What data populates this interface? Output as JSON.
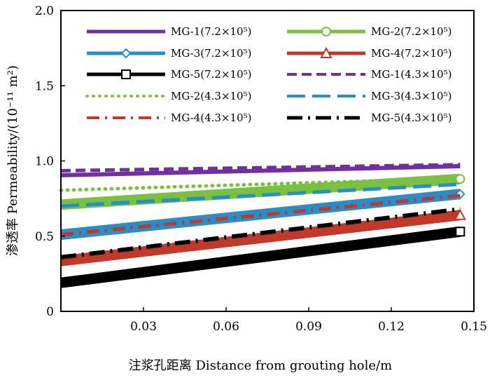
{
  "chart_data": {
    "type": "line",
    "title": "",
    "xlabel": "注浆孔距离 Distance from grouting hole/m",
    "ylabel": "渗透率 Permeability/(10⁻¹¹ m²)",
    "xlim": [
      0,
      0.15
    ],
    "ylim": [
      0,
      2.0
    ],
    "x_ticks": [
      0.03,
      0.06,
      0.09,
      0.12,
      0.15
    ],
    "x_tick_labels": [
      "0.03",
      "0.06",
      "0.09",
      "0.12",
      "0.15"
    ],
    "y_ticks": [
      0,
      0.5,
      1.0,
      1.5,
      2.0
    ],
    "y_tick_labels": [
      "0",
      "0.5",
      "1.0",
      "1.5",
      "2.0"
    ],
    "grid": false,
    "legend_position": "top",
    "series": [
      {
        "name": "MG-1(7.2×10⁵)",
        "color": "#7030a0",
        "style": "solid",
        "marker": "none",
        "x": [
          0,
          0.145
        ],
        "y": [
          0.905,
          0.965
        ]
      },
      {
        "name": "MG-2(7.2×10⁵)",
        "color": "#7ac142",
        "style": "solid",
        "marker": "circle",
        "x": [
          0,
          0.145
        ],
        "y": [
          0.71,
          0.88
        ]
      },
      {
        "name": "MG-3(7.2×10⁵)",
        "color": "#2a8dc8",
        "style": "solid",
        "marker": "diamond",
        "x": [
          0,
          0.145
        ],
        "y": [
          0.51,
          0.78
        ]
      },
      {
        "name": "MG-4(7.2×10⁵)",
        "color": "#c0392b",
        "style": "solid",
        "marker": "triangle",
        "x": [
          0,
          0.145
        ],
        "y": [
          0.335,
          0.64
        ]
      },
      {
        "name": "MG-5(7.2×10⁵)",
        "color": "#000000",
        "style": "solid",
        "marker": "square",
        "x": [
          0,
          0.145
        ],
        "y": [
          0.19,
          0.53
        ]
      },
      {
        "name": "MG-1(4.3×10⁵)",
        "color": "#7030a0",
        "style": "dash",
        "marker": "none",
        "x": [
          0,
          0.145
        ],
        "y": [
          0.935,
          0.975
        ]
      },
      {
        "name": "MG-2(4.3×10⁵)",
        "color": "#7ac142",
        "style": "dot",
        "marker": "none",
        "x": [
          0,
          0.145
        ],
        "y": [
          0.805,
          0.885
        ]
      },
      {
        "name": "MG-3(4.3×10⁵)",
        "color": "#2a8dc8",
        "style": "longdash",
        "marker": "none",
        "x": [
          0,
          0.145
        ],
        "y": [
          0.7,
          0.845
        ]
      },
      {
        "name": "MG-4(4.3×10⁵)",
        "color": "#c0392b",
        "style": "dashdot",
        "marker": "none",
        "x": [
          0,
          0.145
        ],
        "y": [
          0.51,
          0.77
        ]
      },
      {
        "name": "MG-5(4.3×10⁵)",
        "color": "#000000",
        "style": "dashdot-thick",
        "marker": "none",
        "x": [
          0,
          0.145
        ],
        "y": [
          0.36,
          0.68
        ]
      }
    ]
  }
}
